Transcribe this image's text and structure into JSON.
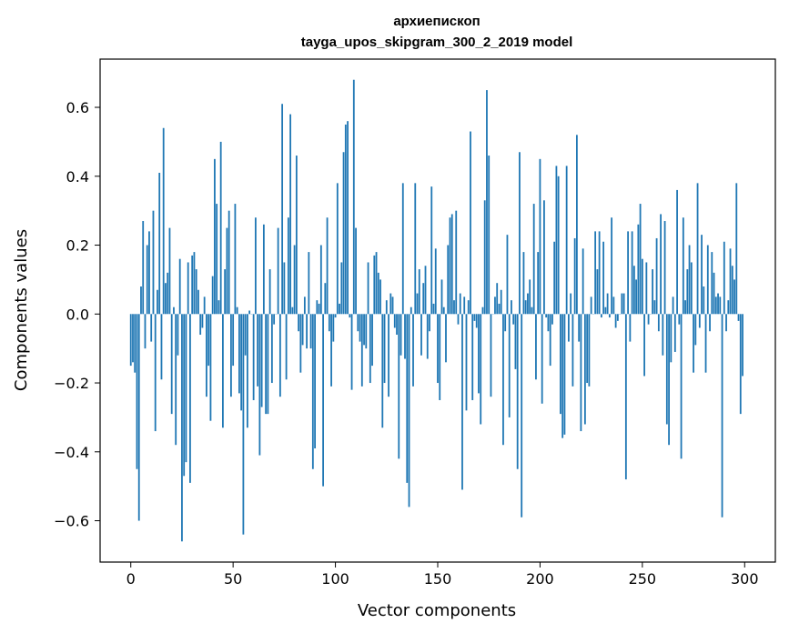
{
  "chart_data": {
    "type": "bar",
    "title": "архиепископ",
    "subtitle": "tayga_upos_skipgram_300_2_2019 model",
    "xlabel": "Vector components",
    "ylabel": "Components values",
    "xlim": [
      -15,
      315
    ],
    "ylim": [
      -0.72,
      0.74
    ],
    "xticks": [
      0,
      50,
      100,
      150,
      200,
      250,
      300
    ],
    "yticks": [
      -0.6,
      -0.4,
      -0.2,
      0.0,
      0.2,
      0.4,
      0.6
    ],
    "ytick_labels": [
      "−0.6",
      "−0.4",
      "−0.2",
      "0.0",
      "0.2",
      "0.4",
      "0.6"
    ],
    "grid": false,
    "bar_color": "#1f77b4",
    "values": [
      -0.15,
      -0.14,
      -0.17,
      -0.45,
      -0.6,
      0.08,
      0.27,
      -0.1,
      0.2,
      0.24,
      -0.08,
      0.3,
      -0.34,
      0.07,
      0.41,
      -0.19,
      0.54,
      0.09,
      0.12,
      0.25,
      -0.29,
      0.02,
      -0.38,
      -0.12,
      0.16,
      -0.66,
      -0.47,
      -0.43,
      0.15,
      -0.49,
      0.17,
      0.18,
      0.13,
      0.07,
      -0.06,
      -0.04,
      0.05,
      -0.24,
      -0.15,
      -0.31,
      0.11,
      0.45,
      0.32,
      0.04,
      0.5,
      -0.33,
      0.13,
      0.25,
      0.3,
      -0.24,
      -0.15,
      0.32,
      0.02,
      -0.23,
      -0.28,
      -0.64,
      -0.12,
      -0.33,
      0.01,
      0.0,
      -0.25,
      0.28,
      -0.21,
      -0.41,
      -0.27,
      0.26,
      -0.29,
      -0.29,
      0.13,
      -0.2,
      -0.03,
      0.0,
      0.25,
      -0.24,
      0.61,
      0.15,
      -0.19,
      0.28,
      0.58,
      0.02,
      0.2,
      0.46,
      -0.05,
      -0.17,
      -0.09,
      0.05,
      -0.1,
      0.18,
      -0.1,
      -0.45,
      -0.39,
      0.04,
      0.03,
      0.2,
      -0.5,
      0.09,
      0.28,
      -0.05,
      -0.21,
      -0.08,
      -0.01,
      0.38,
      0.03,
      0.15,
      0.47,
      0.55,
      0.56,
      -0.01,
      -0.22,
      0.68,
      0.25,
      -0.05,
      -0.08,
      -0.21,
      -0.09,
      -0.1,
      0.15,
      -0.2,
      -0.15,
      0.17,
      0.18,
      0.12,
      0.1,
      -0.33,
      -0.2,
      0.04,
      -0.24,
      0.06,
      0.05,
      -0.04,
      -0.06,
      -0.42,
      -0.12,
      0.38,
      -0.13,
      -0.49,
      -0.56,
      0.02,
      -0.21,
      0.38,
      0.06,
      0.13,
      -0.12,
      0.09,
      0.14,
      -0.13,
      -0.05,
      0.37,
      0.03,
      0.19,
      -0.2,
      -0.25,
      0.1,
      0.02,
      -0.14,
      0.2,
      0.28,
      0.29,
      0.04,
      0.3,
      -0.03,
      0.06,
      -0.51,
      0.05,
      -0.28,
      0.04,
      0.53,
      -0.25,
      -0.02,
      -0.04,
      -0.23,
      -0.32,
      0.02,
      0.33,
      0.65,
      0.46,
      -0.24,
      0.0,
      0.05,
      0.09,
      0.03,
      0.07,
      -0.38,
      -0.05,
      0.23,
      -0.3,
      0.04,
      -0.03,
      -0.16,
      -0.45,
      0.47,
      -0.59,
      0.18,
      0.04,
      0.06,
      0.1,
      0.02,
      0.32,
      -0.19,
      0.18,
      0.45,
      -0.26,
      0.33,
      -0.01,
      -0.05,
      -0.15,
      -0.03,
      0.21,
      0.43,
      0.4,
      -0.29,
      -0.36,
      -0.35,
      0.43,
      -0.08,
      0.06,
      -0.21,
      0.22,
      0.52,
      -0.08,
      -0.34,
      0.19,
      -0.32,
      -0.2,
      -0.21,
      0.05,
      0.0,
      0.24,
      0.13,
      0.24,
      -0.01,
      0.21,
      0.02,
      0.06,
      -0.01,
      0.28,
      0.05,
      -0.04,
      -0.02,
      0.0,
      0.06,
      0.06,
      -0.48,
      0.24,
      -0.08,
      0.24,
      0.14,
      0.1,
      0.26,
      0.32,
      0.16,
      -0.18,
      0.15,
      -0.03,
      0.0,
      0.13,
      0.04,
      0.22,
      -0.05,
      0.29,
      -0.12,
      0.27,
      -0.32,
      -0.38,
      -0.14,
      0.05,
      -0.11,
      0.36,
      -0.03,
      -0.42,
      0.28,
      0.04,
      0.13,
      0.2,
      0.15,
      -0.17,
      -0.09,
      0.38,
      -0.04,
      0.23,
      0.08,
      -0.17,
      0.2,
      -0.05,
      0.18,
      0.12,
      0.05,
      0.06,
      0.05,
      -0.59,
      0.21,
      -0.05,
      0.04,
      0.19,
      0.14,
      0.1,
      0.38,
      -0.02,
      -0.29,
      -0.18
    ]
  }
}
